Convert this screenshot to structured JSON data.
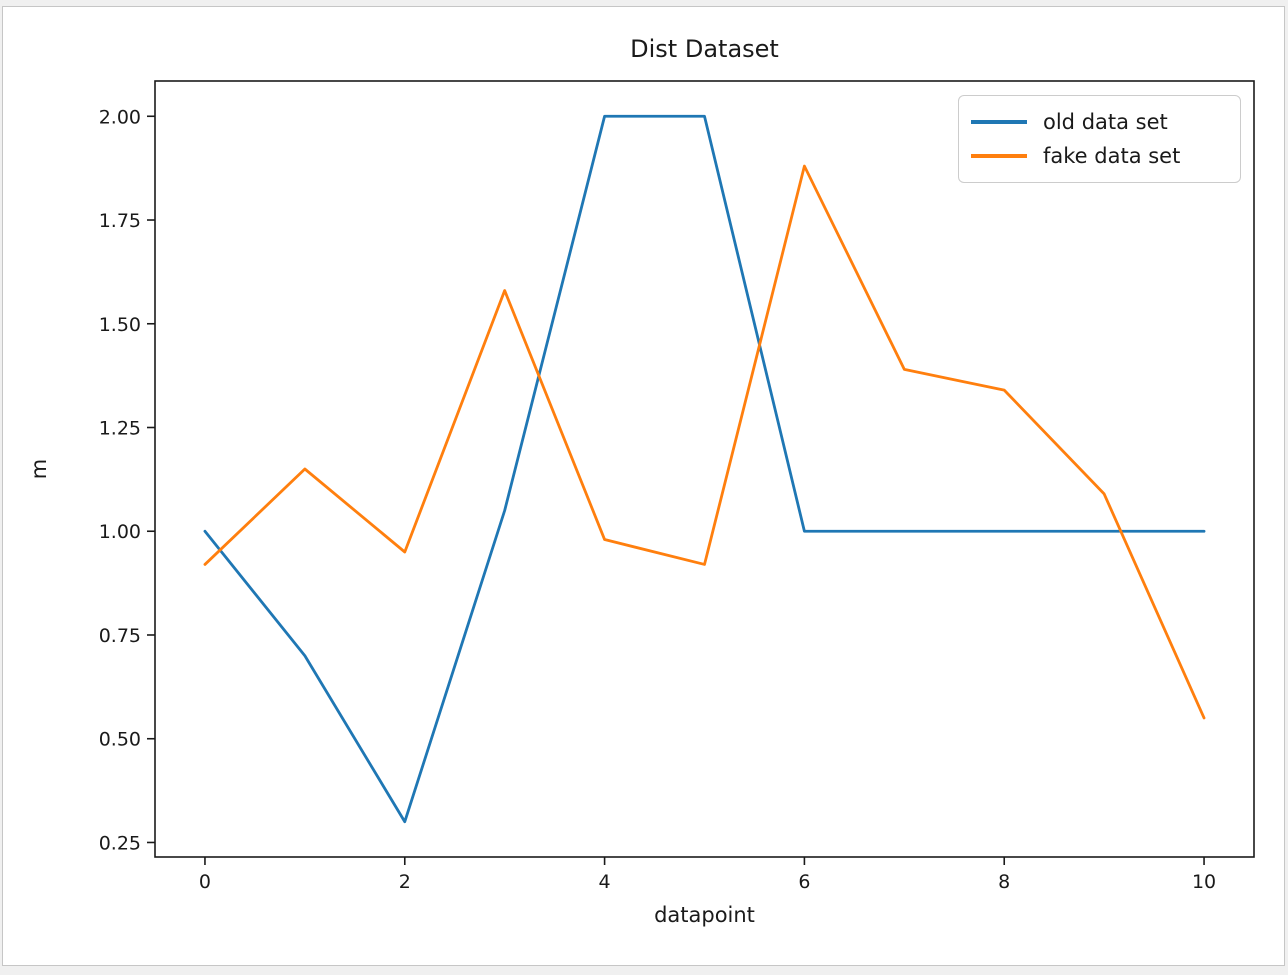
{
  "chart_data": {
    "type": "line",
    "title": "Dist Dataset",
    "xlabel": "datapoint",
    "ylabel": "m",
    "x": [
      0,
      1,
      2,
      3,
      4,
      5,
      6,
      7,
      8,
      9,
      10
    ],
    "series": [
      {
        "name": "old data set",
        "color": "#1f77b4",
        "values": [
          1.0,
          0.7,
          0.3,
          1.05,
          2.0,
          2.0,
          1.0,
          1.0,
          1.0,
          1.0,
          1.0
        ]
      },
      {
        "name": "fake data set",
        "color": "#ff7f0e",
        "values": [
          0.92,
          1.15,
          0.95,
          1.58,
          0.98,
          0.92,
          1.88,
          1.39,
          1.34,
          1.09,
          0.55
        ]
      }
    ],
    "xticks": [
      0,
      2,
      4,
      6,
      8,
      10
    ],
    "xtick_labels": [
      "0",
      "2",
      "4",
      "6",
      "8",
      "10"
    ],
    "yticks": [
      0.25,
      0.5,
      0.75,
      1.0,
      1.25,
      1.5,
      1.75,
      2.0
    ],
    "ytick_labels": [
      "0.25",
      "0.50",
      "0.75",
      "1.00",
      "1.25",
      "1.50",
      "1.75",
      "2.00"
    ],
    "xlim": [
      -0.5,
      10.5
    ],
    "ylim": [
      0.215,
      2.085
    ],
    "grid": false,
    "legend": {
      "position": "upper right",
      "entries": [
        "old data set",
        "fake data set"
      ]
    },
    "axis_color": "#1a1a1a"
  }
}
